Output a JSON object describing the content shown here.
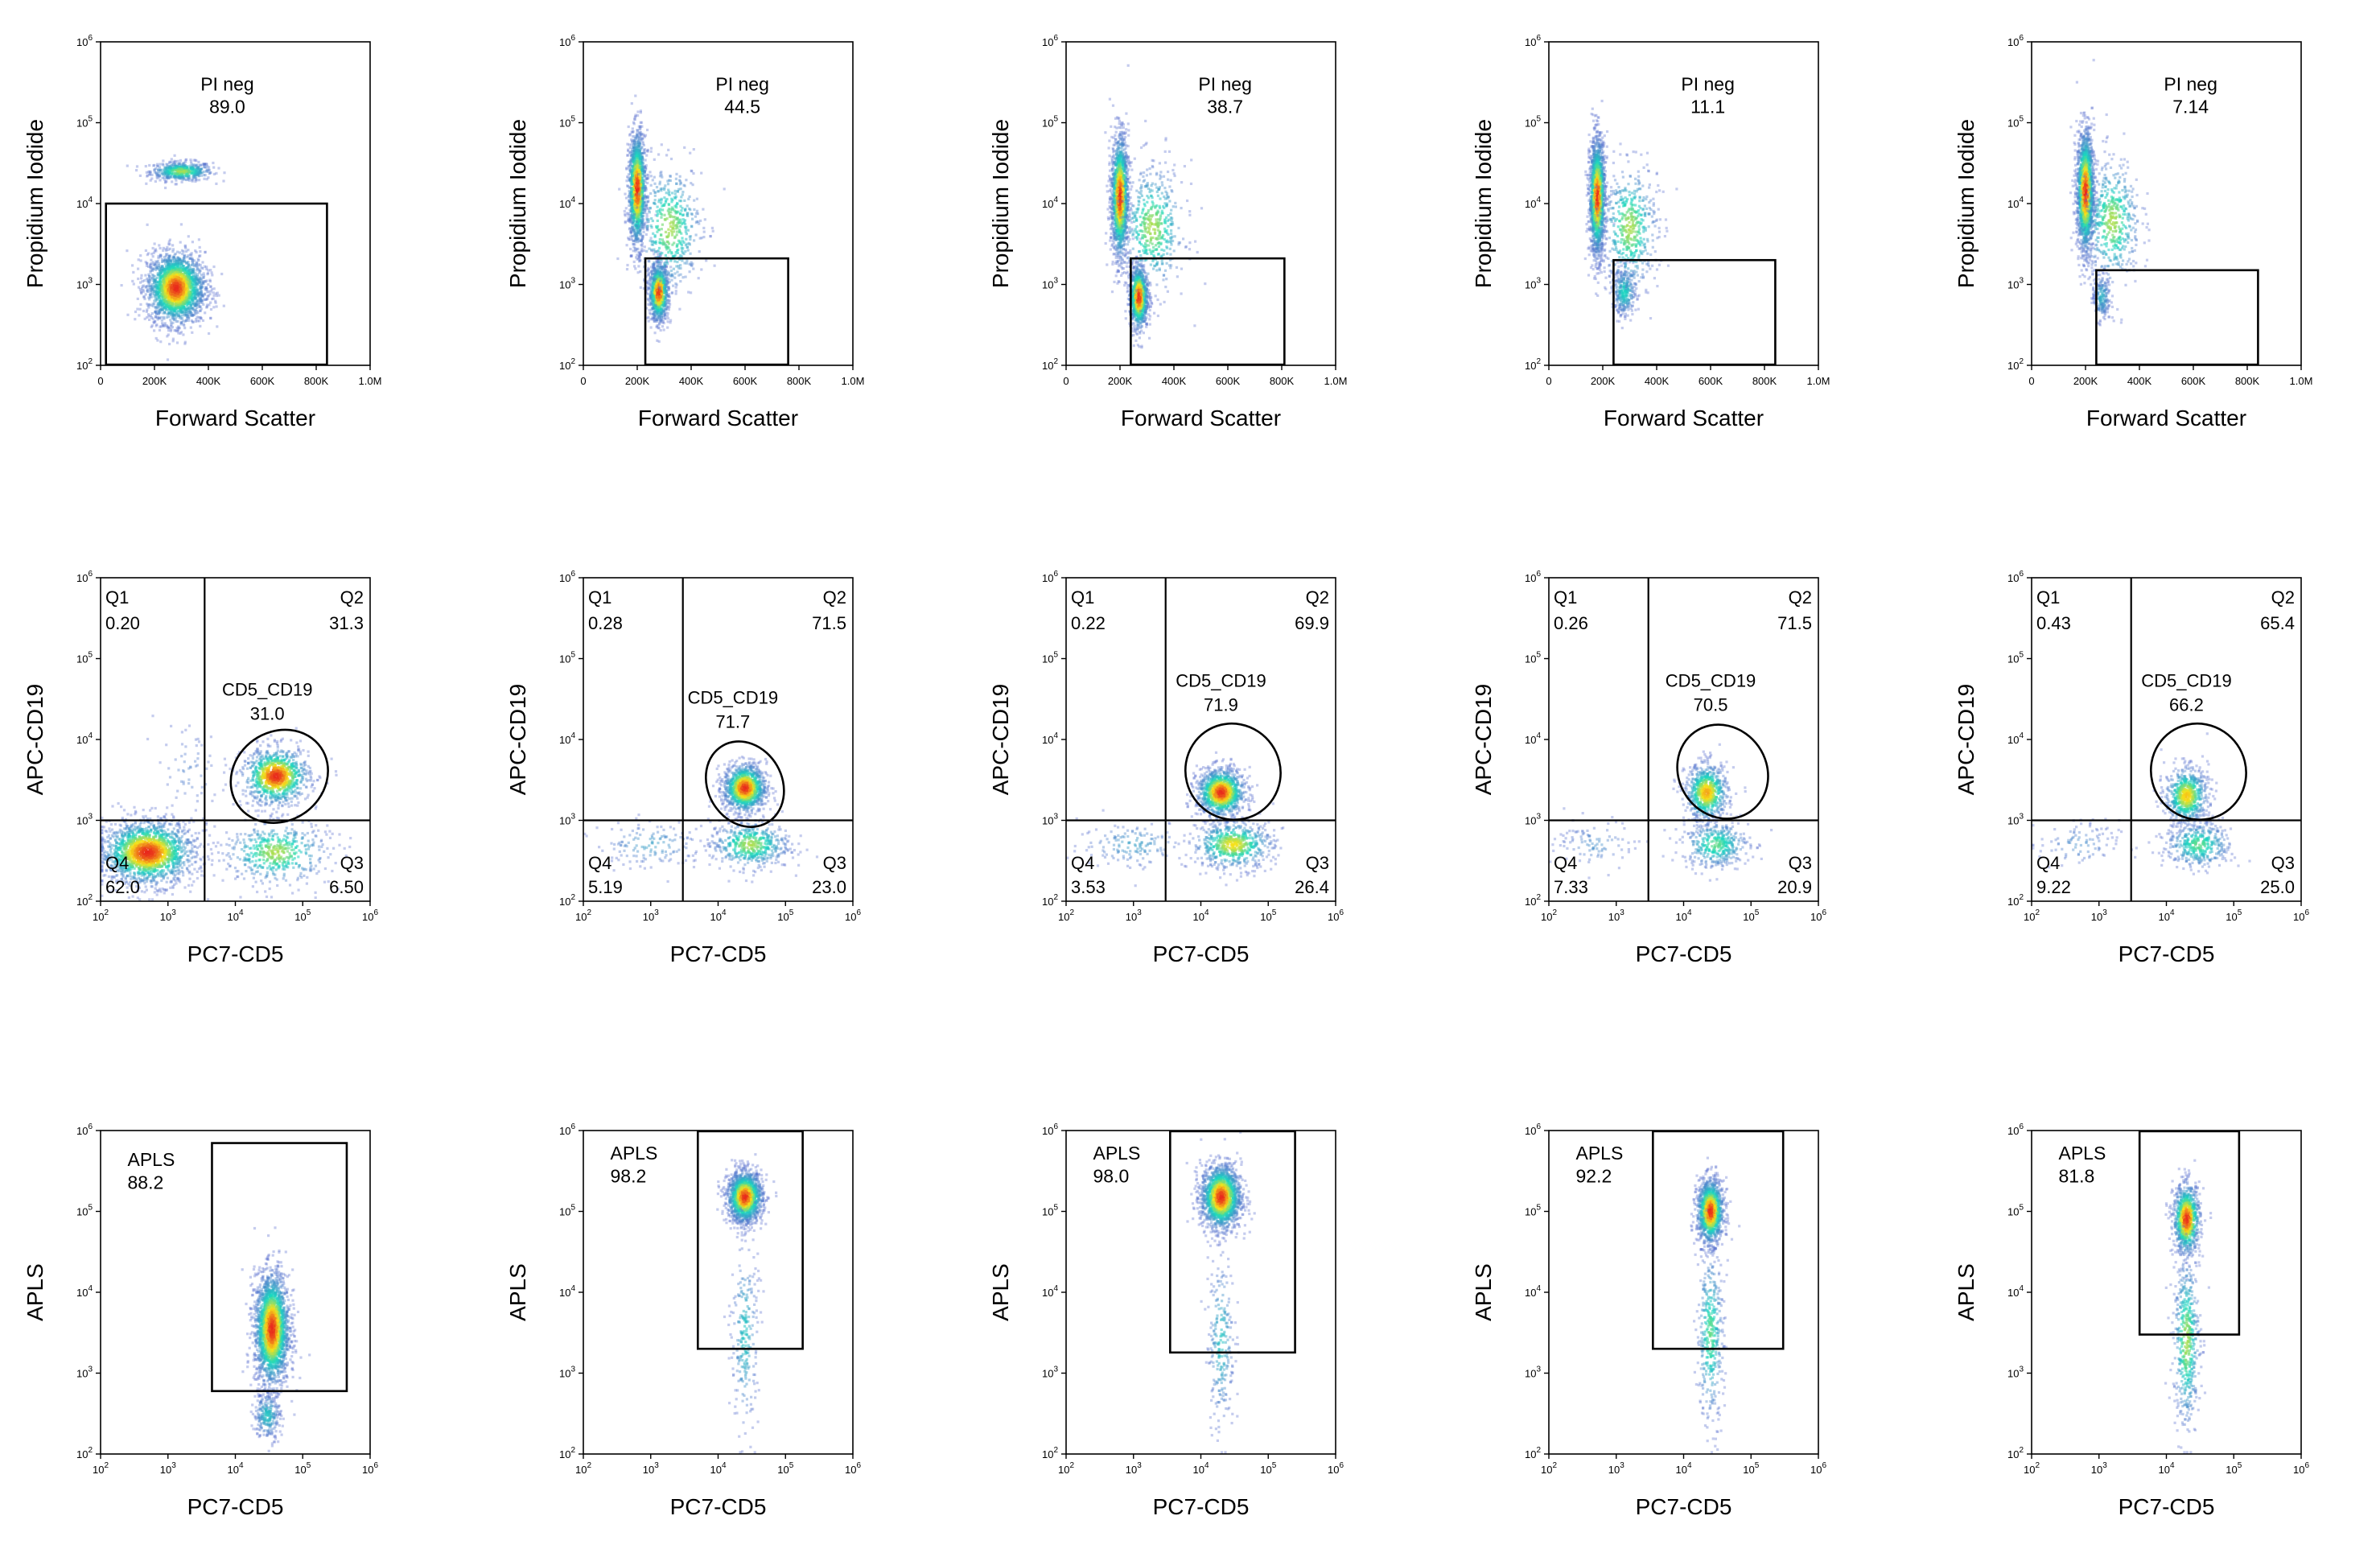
{
  "figure": {
    "rows": [
      {
        "type": "scatter",
        "density": true,
        "xlabel": "Forward Scatter",
        "ylabel": "Propidium Iodide",
        "x_scale": "linear",
        "y_scale": "log",
        "xlim": [
          0,
          1000000
        ],
        "ylim": [
          100,
          1000000
        ],
        "x_ticks": [
          "0",
          "200K",
          "400K",
          "600K",
          "800K",
          "1.0M"
        ],
        "y_ticks": [
          "10^2",
          "10^3",
          "10^4",
          "10^5",
          "10^6"
        ]
      },
      {
        "type": "scatter",
        "density": true,
        "xlabel": "PC7-CD5",
        "ylabel": "APC-CD19",
        "x_scale": "log",
        "y_scale": "log",
        "xlim": [
          100,
          1000000
        ],
        "ylim": [
          100,
          1000000
        ],
        "x_ticks": [
          "10^2",
          "10^3",
          "10^4",
          "10^5",
          "10^6"
        ],
        "y_ticks": [
          "10^2",
          "10^3",
          "10^4",
          "10^5",
          "10^6"
        ]
      },
      {
        "type": "scatter",
        "density": true,
        "xlabel": "PC7-CD5",
        "ylabel": "APLS",
        "x_scale": "log",
        "y_scale": "log",
        "xlim": [
          100,
          1000000
        ],
        "ylim": [
          100,
          1000000
        ],
        "x_ticks": [
          "10^2",
          "10^3",
          "10^4",
          "10^5",
          "10^6"
        ],
        "y_ticks": [
          "10^2",
          "10^3",
          "10^4",
          "10^5",
          "10^6"
        ]
      }
    ]
  },
  "colors": {
    "density_low": "#5a6ccf",
    "density_mid": "#18d8c0",
    "density_high": "#f7e21a",
    "density_peak": "#e8281c",
    "gate": "#000000",
    "axis": "#000000"
  },
  "chart_data": [
    {
      "type": "scatter",
      "row": 0,
      "col": 0,
      "title": "",
      "gate": {
        "name": "PI neg",
        "value": "89.0",
        "x": [
          20000,
          840000
        ],
        "y": [
          100,
          10000
        ]
      },
      "populations": [
        {
          "x": 300000,
          "y": 25000,
          "sx": 0.12,
          "sy": 0.06,
          "n": 500,
          "log_x": false
        },
        {
          "x": 280000,
          "y": 900,
          "sx": 0.12,
          "sy": 0.22,
          "n": 2200,
          "log_x": false
        }
      ]
    },
    {
      "type": "scatter",
      "row": 0,
      "col": 1,
      "title": "",
      "gate": {
        "name": "PI neg",
        "value": "44.5",
        "x": [
          230000,
          760000
        ],
        "y": [
          100,
          2100
        ]
      },
      "populations": [
        {
          "x": 200000,
          "y": 15000,
          "sx": 0.05,
          "sy": 0.35,
          "n": 1400,
          "log_x": false
        },
        {
          "x": 280000,
          "y": 800,
          "sx": 0.04,
          "sy": 0.18,
          "n": 1000,
          "log_x": false
        },
        {
          "x": 320000,
          "y": 5000,
          "sx": 0.12,
          "sy": 0.4,
          "n": 500,
          "log_x": false
        }
      ]
    },
    {
      "type": "scatter",
      "row": 0,
      "col": 2,
      "title": "",
      "gate": {
        "name": "PI neg",
        "value": "38.7",
        "x": [
          240000,
          810000
        ],
        "y": [
          100,
          2100
        ]
      },
      "populations": [
        {
          "x": 200000,
          "y": 12000,
          "sx": 0.05,
          "sy": 0.38,
          "n": 1500,
          "log_x": false
        },
        {
          "x": 270000,
          "y": 700,
          "sx": 0.04,
          "sy": 0.2,
          "n": 900,
          "log_x": false
        },
        {
          "x": 320000,
          "y": 5000,
          "sx": 0.12,
          "sy": 0.4,
          "n": 500,
          "log_x": false
        }
      ]
    },
    {
      "type": "scatter",
      "row": 0,
      "col": 3,
      "title": "",
      "gate": {
        "name": "PI neg",
        "value": "11.1",
        "x": [
          240000,
          840000
        ],
        "y": [
          100,
          2000
        ]
      },
      "populations": [
        {
          "x": 180000,
          "y": 12000,
          "sx": 0.05,
          "sy": 0.36,
          "n": 1700,
          "log_x": false
        },
        {
          "x": 280000,
          "y": 800,
          "sx": 0.05,
          "sy": 0.15,
          "n": 300,
          "log_x": false
        },
        {
          "x": 300000,
          "y": 5000,
          "sx": 0.11,
          "sy": 0.4,
          "n": 500,
          "log_x": false
        }
      ]
    },
    {
      "type": "scatter",
      "row": 0,
      "col": 4,
      "title": "",
      "gate": {
        "name": "PI neg",
        "value": "7.14",
        "x": [
          240000,
          840000
        ],
        "y": [
          100,
          1500
        ]
      },
      "populations": [
        {
          "x": 200000,
          "y": 14000,
          "sx": 0.05,
          "sy": 0.38,
          "n": 1700,
          "log_x": false
        },
        {
          "x": 260000,
          "y": 700,
          "sx": 0.04,
          "sy": 0.15,
          "n": 200,
          "log_x": false
        },
        {
          "x": 300000,
          "y": 6000,
          "sx": 0.11,
          "sy": 0.4,
          "n": 500,
          "log_x": false
        }
      ]
    },
    {
      "type": "scatter",
      "row": 1,
      "col": 0,
      "title": "",
      "quadrant": {
        "x": 3500,
        "y": 1000,
        "labels": {
          "Q1": "0.20",
          "Q2": "31.3",
          "Q3": "6.50",
          "Q4": "62.0"
        }
      },
      "ellipse": {
        "name": "CD5_CD19",
        "value": "31.0",
        "cx": 45000,
        "cy": 3500,
        "rx_dec": 0.75,
        "ry_dec": 0.55,
        "angle": -35
      },
      "populations": [
        {
          "x": 500,
          "y": 400,
          "sx": 0.35,
          "sy": 0.2,
          "n": 1700,
          "log_x": true
        },
        {
          "x": 40000,
          "y": 3500,
          "sx": 0.25,
          "sy": 0.18,
          "n": 900,
          "log_x": true
        },
        {
          "x": 40000,
          "y": 400,
          "sx": 0.4,
          "sy": 0.2,
          "n": 500,
          "log_x": true
        },
        {
          "x": 2000,
          "y": 4000,
          "sx": 0.25,
          "sy": 0.3,
          "n": 60,
          "log_x": true
        }
      ]
    },
    {
      "type": "scatter",
      "row": 1,
      "col": 1,
      "title": "",
      "quadrant": {
        "x": 3000,
        "y": 1000,
        "labels": {
          "Q1": "0.28",
          "Q2": "71.5",
          "Q3": "23.0",
          "Q4": "5.19"
        }
      },
      "ellipse": {
        "name": "CD5_CD19",
        "value": "71.7",
        "cx": 25000,
        "cy": 2800,
        "rx_dec": 0.55,
        "ry_dec": 0.55,
        "angle": -30
      },
      "populations": [
        {
          "x": 25000,
          "y": 2500,
          "sx": 0.16,
          "sy": 0.15,
          "n": 1100,
          "log_x": true
        },
        {
          "x": 30000,
          "y": 500,
          "sx": 0.3,
          "sy": 0.15,
          "n": 500,
          "log_x": true
        },
        {
          "x": 1000,
          "y": 500,
          "sx": 0.4,
          "sy": 0.15,
          "n": 150,
          "log_x": true
        }
      ]
    },
    {
      "type": "scatter",
      "row": 1,
      "col": 2,
      "title": "",
      "quadrant": {
        "x": 3000,
        "y": 1000,
        "labels": {
          "Q1": "0.22",
          "Q2": "69.9",
          "Q3": "26.4",
          "Q4": "3.53"
        }
      },
      "ellipse": {
        "name": "CD5_CD19",
        "value": "71.9",
        "cx": 30000,
        "cy": 4000,
        "rx_dec": 0.7,
        "ry_dec": 0.6,
        "angle": -35
      },
      "populations": [
        {
          "x": 20000,
          "y": 2200,
          "sx": 0.18,
          "sy": 0.15,
          "n": 1100,
          "log_x": true
        },
        {
          "x": 30000,
          "y": 500,
          "sx": 0.3,
          "sy": 0.15,
          "n": 600,
          "log_x": true
        },
        {
          "x": 1000,
          "y": 500,
          "sx": 0.4,
          "sy": 0.15,
          "n": 150,
          "log_x": true
        }
      ]
    },
    {
      "type": "scatter",
      "row": 1,
      "col": 3,
      "title": "",
      "quadrant": {
        "x": 3000,
        "y": 1000,
        "labels": {
          "Q1": "0.26",
          "Q2": "71.5",
          "Q3": "20.9",
          "Q4": "7.33"
        }
      },
      "ellipse": {
        "name": "CD5_CD19",
        "value": "70.5",
        "cx": 38000,
        "cy": 4000,
        "rx_dec": 0.65,
        "ry_dec": 0.6,
        "angle": -35
      },
      "populations": [
        {
          "x": 22000,
          "y": 2200,
          "sx": 0.16,
          "sy": 0.18,
          "n": 700,
          "log_x": true
        },
        {
          "x": 30000,
          "y": 500,
          "sx": 0.25,
          "sy": 0.15,
          "n": 400,
          "log_x": true
        },
        {
          "x": 500,
          "y": 500,
          "sx": 0.3,
          "sy": 0.15,
          "n": 100,
          "log_x": true
        }
      ]
    },
    {
      "type": "scatter",
      "row": 1,
      "col": 4,
      "title": "",
      "quadrant": {
        "x": 3000,
        "y": 1000,
        "labels": {
          "Q1": "0.43",
          "Q2": "65.4",
          "Q3": "25.0",
          "Q4": "9.22"
        }
      },
      "ellipse": {
        "name": "CD5_CD19",
        "value": "66.2",
        "cx": 30000,
        "cy": 4000,
        "rx_dec": 0.7,
        "ry_dec": 0.6,
        "angle": -35
      },
      "populations": [
        {
          "x": 20000,
          "y": 2000,
          "sx": 0.16,
          "sy": 0.18,
          "n": 650,
          "log_x": true
        },
        {
          "x": 30000,
          "y": 500,
          "sx": 0.25,
          "sy": 0.15,
          "n": 400,
          "log_x": true
        },
        {
          "x": 500,
          "y": 500,
          "sx": 0.3,
          "sy": 0.15,
          "n": 100,
          "log_x": true
        }
      ]
    },
    {
      "type": "scatter",
      "row": 2,
      "col": 0,
      "title": "",
      "gate": {
        "name": "APLS",
        "value": "88.2",
        "x": [
          4500,
          450000
        ],
        "y": [
          600,
          700000
        ]
      },
      "populations": [
        {
          "x": 35000,
          "y": 3500,
          "sx": 0.13,
          "sy": 0.35,
          "n": 2200,
          "log_x": true
        },
        {
          "x": 30000,
          "y": 300,
          "sx": 0.1,
          "sy": 0.15,
          "n": 250,
          "log_x": true
        }
      ]
    },
    {
      "type": "scatter",
      "row": 2,
      "col": 1,
      "title": "",
      "gate": {
        "name": "APLS",
        "value": "98.2",
        "x": [
          5000,
          180000
        ],
        "y": [
          2000,
          1000000
        ]
      },
      "populations": [
        {
          "x": 25000,
          "y": 150000,
          "sx": 0.13,
          "sy": 0.16,
          "n": 1600,
          "log_x": true
        },
        {
          "x": 25000,
          "y": 3000,
          "sx": 0.1,
          "sy": 0.6,
          "n": 250,
          "log_x": true
        }
      ]
    },
    {
      "type": "scatter",
      "row": 2,
      "col": 2,
      "title": "",
      "gate": {
        "name": "APLS",
        "value": "98.0",
        "x": [
          3500,
          250000
        ],
        "y": [
          1800,
          1000000
        ]
      },
      "populations": [
        {
          "x": 20000,
          "y": 150000,
          "sx": 0.15,
          "sy": 0.2,
          "n": 1700,
          "log_x": true
        },
        {
          "x": 20000,
          "y": 2500,
          "sx": 0.1,
          "sy": 0.55,
          "n": 250,
          "log_x": true
        }
      ]
    },
    {
      "type": "scatter",
      "row": 2,
      "col": 3,
      "title": "",
      "gate": {
        "name": "APLS",
        "value": "92.2",
        "x": [
          3500,
          300000
        ],
        "y": [
          2000,
          1000000
        ]
      },
      "populations": [
        {
          "x": 25000,
          "y": 100000,
          "sx": 0.1,
          "sy": 0.2,
          "n": 1200,
          "log_x": true
        },
        {
          "x": 25000,
          "y": 3000,
          "sx": 0.1,
          "sy": 0.55,
          "n": 400,
          "log_x": true
        }
      ]
    },
    {
      "type": "scatter",
      "row": 2,
      "col": 4,
      "title": "",
      "gate": {
        "name": "APLS",
        "value": "81.8",
        "x": [
          4000,
          120000
        ],
        "y": [
          3000,
          1000000
        ]
      },
      "populations": [
        {
          "x": 20000,
          "y": 80000,
          "sx": 0.1,
          "sy": 0.22,
          "n": 900,
          "log_x": true
        },
        {
          "x": 20000,
          "y": 2500,
          "sx": 0.1,
          "sy": 0.55,
          "n": 500,
          "log_x": true
        }
      ]
    }
  ]
}
